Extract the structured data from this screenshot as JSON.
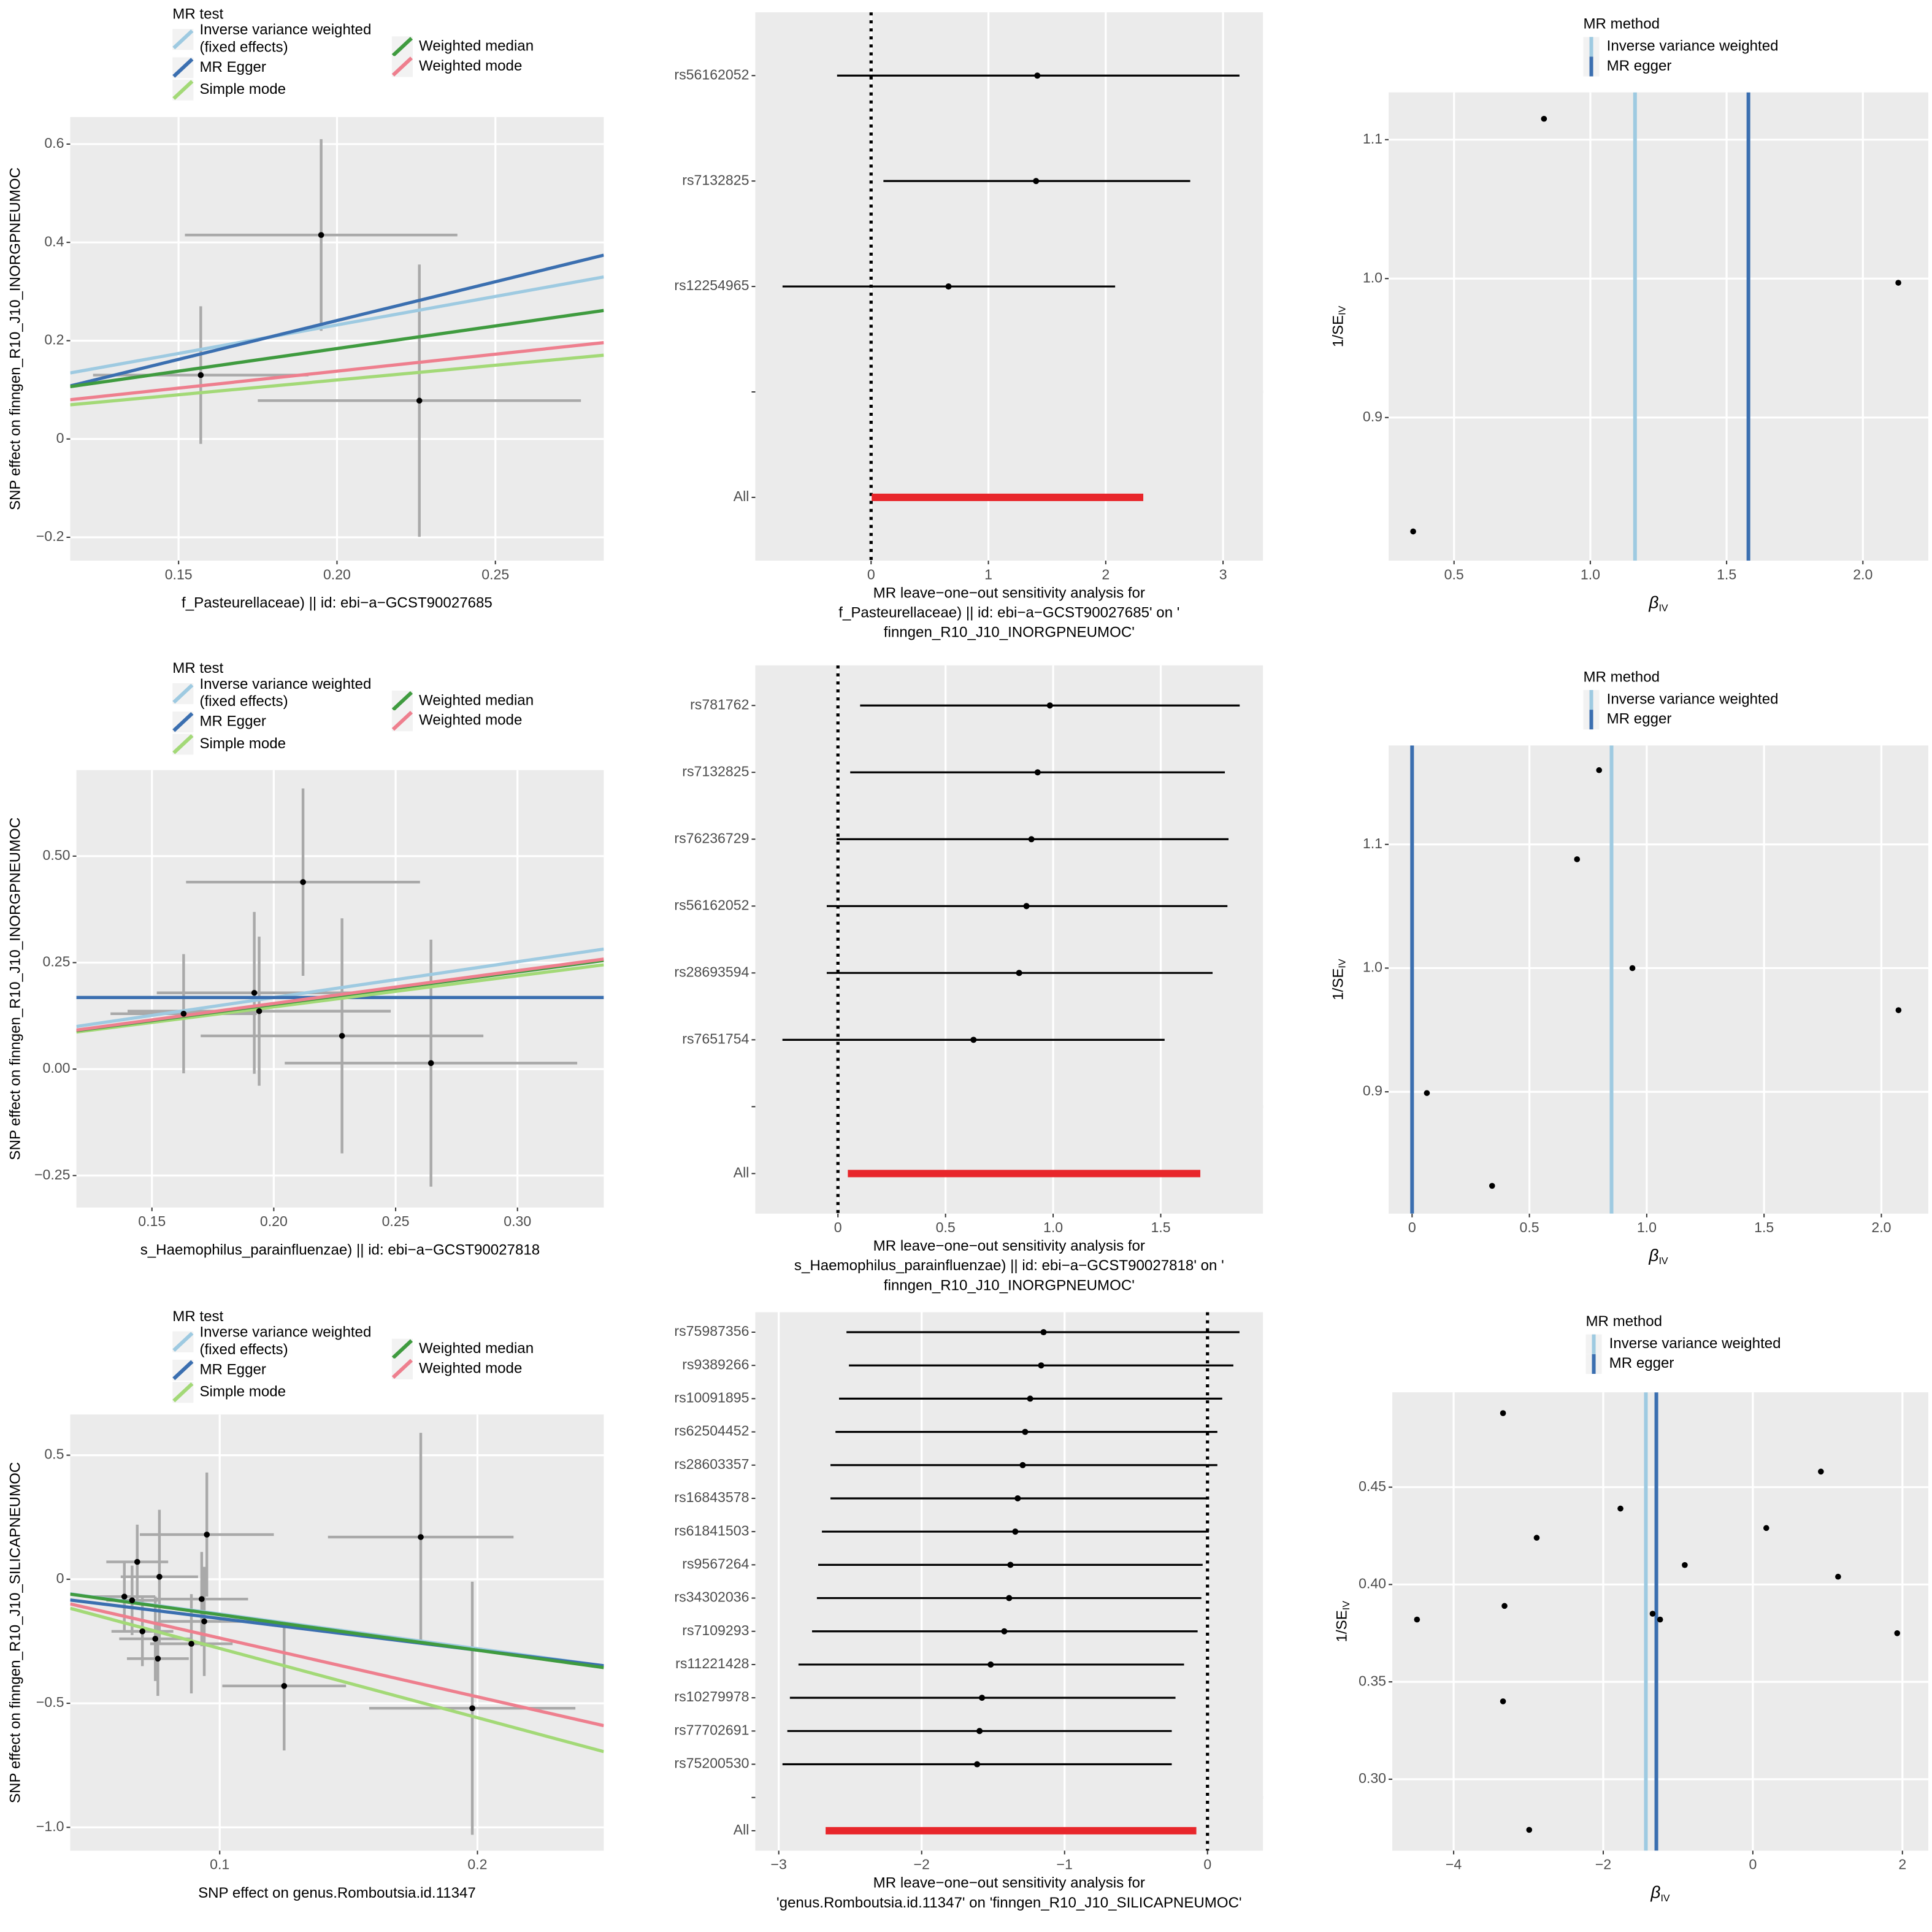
{
  "chart_data": [
    {
      "type": "scatter",
      "xlabel": "f_Pasteurellaceae) || id: ebi−a−GCST90027685",
      "ylabel": "SNP effect on finngen_R10_J10_INORGPNEUMOC",
      "legend_title": "MR test",
      "x": [
        0.195,
        0.157,
        0.226
      ],
      "y": [
        0.415,
        0.13,
        0.078
      ],
      "xerr": [
        0.043,
        0.034,
        0.051
      ],
      "yerr": [
        0.195,
        0.14,
        0.277
      ],
      "point_color": "#000000",
      "errorbar_color": "#a9a9a9",
      "lines": [
        {
          "name": "Inverse variance weighted\n(fixed effects)",
          "color": "#9ecae1",
          "slope": 1.16,
          "intercept": 0
        },
        {
          "name": "MR Egger",
          "color": "#3b6fb0",
          "slope": 1.58,
          "intercept": -0.075
        },
        {
          "name": "Simple mode",
          "color": "#a3d977",
          "slope": 0.6,
          "intercept": 0
        },
        {
          "name": "Weighted median",
          "color": "#3f9b3f",
          "slope": 0.92,
          "intercept": 0
        },
        {
          "name": "Weighted mode",
          "color": "#ee7f8e",
          "slope": 0.69,
          "intercept": 0
        }
      ],
      "xlim": [
        0.1158,
        0.2842
      ],
      "ylim": [
        -0.2475,
        0.655
      ],
      "xticks": [
        0.15,
        {
          "value": 0.2,
          "label": "0.20"
        },
        0.25
      ],
      "yticks": [
        {
          "value": -0.2,
          "label": "−0.2"
        },
        0,
        0.2,
        0.4,
        0.6
      ]
    },
    {
      "type": "forest",
      "xlabel": "MR leave−one−out sensitivity analysis for\nf_Pasteurellaceae) || id: ebi−a−GCST90027685' on '\nfinngen_R10_J10_INORGPNEUMOC'",
      "categories": [
        "rs56162052",
        "rs7132825",
        "rs12254965",
        null,
        "All"
      ],
      "values": [
        1.417,
        1.406,
        0.66,
        null,
        null
      ],
      "lower": [
        -0.29,
        0.105,
        -0.755,
        null,
        0.005
      ],
      "upper": [
        3.14,
        2.72,
        2.08,
        null,
        2.32
      ],
      "color": "#000000",
      "summary_color": "#e8262b",
      "separator_color": "#b3b3b3",
      "reference_line": 0,
      "xlim": [
        -0.987,
        3.34
      ],
      "xticks": [
        0,
        1,
        2,
        3
      ]
    },
    {
      "type": "funnel",
      "xlabel": "β",
      "xlabel_sub": "IV",
      "ylabel": "1/SE",
      "ylabel_sub": "IV",
      "legend_title": "MR method",
      "x": [
        0.35,
        0.83,
        2.13
      ],
      "y": [
        0.818,
        1.115,
        0.997
      ],
      "point_color": "#000000",
      "methods": [
        {
          "name": "Inverse variance weighted",
          "color": "#9ecae1",
          "value": 1.164
        },
        {
          "name": "MR egger",
          "color": "#3b6fb0",
          "value": 1.58
        }
      ],
      "xlim": [
        0.26,
        2.24
      ],
      "ylim": [
        0.797,
        1.134
      ],
      "xticks": [
        0.5,
        {
          "value": 1,
          "label": "1.0"
        },
        1.5,
        {
          "value": 2,
          "label": "2.0"
        }
      ],
      "yticks": [
        0.9,
        {
          "value": 1,
          "label": "1.0"
        },
        1.1
      ]
    },
    {
      "type": "scatter",
      "xlabel": "s_Haemophilus_parainfluenzae) || id: ebi−a−GCST90027818",
      "ylabel": "SNP effect on finngen_R10_J10_INORGPNEUMOC",
      "legend_title": "MR test",
      "x": [
        0.212,
        0.192,
        0.194,
        0.163,
        0.228,
        0.2645
      ],
      "y": [
        0.439,
        0.179,
        0.136,
        0.13,
        0.078,
        0.014
      ],
      "xerr": [
        0.048,
        0.04,
        0.054,
        0.03,
        0.058,
        0.06
      ],
      "yerr": [
        0.22,
        0.19,
        0.175,
        0.14,
        0.276,
        0.29
      ],
      "point_color": "#000000",
      "errorbar_color": "#a9a9a9",
      "lines": [
        {
          "name": "Inverse variance weighted\n(fixed effects)",
          "color": "#9ecae1",
          "slope": 0.84,
          "intercept": 0
        },
        {
          "name": "MR Egger",
          "color": "#3b6fb0",
          "slope": 0,
          "intercept": 0.168
        },
        {
          "name": "Simple mode",
          "color": "#a3d977",
          "slope": 0.73,
          "intercept": 0
        },
        {
          "name": "Weighted median",
          "color": "#3f9b3f",
          "slope": 0.76,
          "intercept": 0
        },
        {
          "name": "Weighted mode",
          "color": "#ee7f8e",
          "slope": 0.77,
          "intercept": 0
        }
      ],
      "xlim": [
        0.119,
        0.3354
      ],
      "ylim": [
        -0.325,
        0.702
      ],
      "xticks": [
        0.15,
        {
          "value": 0.2,
          "label": "0.20"
        },
        0.25,
        {
          "value": 0.3,
          "label": "0.30"
        }
      ],
      "yticks": [
        {
          "value": -0.25,
          "label": "−0.25"
        },
        {
          "value": 0,
          "label": "0.00"
        },
        0.25,
        {
          "value": 0.5,
          "label": "0.50"
        }
      ]
    },
    {
      "type": "forest",
      "xlabel": "MR leave−one−out sensitivity analysis for\ns_Haemophilus_parainfluenzae) || id: ebi−a−GCST90027818' on '\nfinngen_R10_J10_INORGPNEUMOC'",
      "categories": [
        "rs781762",
        "rs7132825",
        "rs76236729",
        "rs56162052",
        "rs28693594",
        "rs7651754",
        null,
        "All"
      ],
      "values": [
        0.985,
        0.928,
        0.899,
        0.876,
        0.842,
        0.63,
        null,
        null
      ],
      "lower": [
        0.103,
        0.057,
        -0.006,
        -0.052,
        -0.052,
        -0.258,
        null,
        0.046
      ],
      "upper": [
        1.867,
        1.798,
        1.815,
        1.81,
        1.741,
        1.518,
        null,
        1.684
      ],
      "color": "#000000",
      "summary_color": "#e8262b",
      "separator_color": "#b3b3b3",
      "reference_line": 0,
      "xlim": [
        -0.384,
        1.975
      ],
      "xticks": [
        0,
        0.5,
        {
          "value": 1,
          "label": "1.0"
        },
        1.5
      ]
    },
    {
      "type": "funnel",
      "xlabel": "β",
      "xlabel_sub": "IV",
      "ylabel": "1/SE",
      "ylabel_sub": "IV",
      "legend_title": "MR method",
      "x": [
        0.797,
        0.703,
        0.939,
        2.073,
        0.063,
        0.341
      ],
      "y": [
        1.16,
        1.088,
        1.0,
        0.966,
        0.899,
        0.824
      ],
      "point_color": "#000000",
      "methods": [
        {
          "name": "Inverse variance weighted",
          "color": "#9ecae1",
          "value": 0.85
        },
        {
          "name": "MR egger",
          "color": "#3b6fb0",
          "value": 0.0
        }
      ],
      "xlim": [
        -0.1,
        2.2
      ],
      "ylim": [
        0.8015,
        1.18
      ],
      "xticks": [
        0,
        0.5,
        {
          "value": 1,
          "label": "1.0"
        },
        1.5,
        {
          "value": 2,
          "label": "2.0"
        }
      ],
      "yticks": [
        0.9,
        {
          "value": 1,
          "label": "1.0"
        },
        1.1
      ]
    },
    {
      "type": "scatter",
      "xlabel": "SNP effect on genus.Romboutsia.id.11347",
      "ylabel": "SNP effect on finngen_R10_J10_SILICAPNEUMOC",
      "legend_title": "MR test",
      "x": [
        0.068,
        0.0766,
        0.095,
        0.093,
        0.094,
        0.063,
        0.07,
        0.075,
        0.076,
        0.089,
        0.125,
        0.178,
        0.198,
        0.066
      ],
      "y": [
        0.07,
        0.01,
        0.18,
        -0.08,
        -0.17,
        -0.07,
        -0.21,
        -0.24,
        -0.32,
        -0.26,
        -0.43,
        0.17,
        -0.52,
        -0.085
      ],
      "xerr": [
        0.012,
        0.015,
        0.026,
        0.018,
        0.018,
        0.012,
        0.012,
        0.014,
        0.012,
        0.016,
        0.024,
        0.036,
        0.04,
        0.01
      ],
      "yerr": [
        0.15,
        0.27,
        0.25,
        0.19,
        0.22,
        0.14,
        0.14,
        0.17,
        0.15,
        0.2,
        0.26,
        0.42,
        0.51,
        0.14
      ],
      "point_color": "#000000",
      "errorbar_color": "#a9a9a9",
      "lines": [
        {
          "name": "Inverse variance weighted\n(fixed effects)",
          "color": "#9ecae1",
          "slope": -1.4,
          "intercept": 0
        },
        {
          "name": "MR Egger",
          "color": "#3b6fb0",
          "slope": -1.28,
          "intercept": -0.03
        },
        {
          "name": "Simple mode",
          "color": "#a3d977",
          "slope": -2.79,
          "intercept": 0
        },
        {
          "name": "Weighted median",
          "color": "#3f9b3f",
          "slope": -1.43,
          "intercept": 0
        },
        {
          "name": "Weighted mode",
          "color": "#ee7f8e",
          "slope": -2.37,
          "intercept": 0
        }
      ],
      "xlim": [
        0.042,
        0.249
      ],
      "ylim": [
        -1.094,
        0.664
      ],
      "xticks": [
        0.1,
        0.2
      ],
      "yticks": [
        {
          "value": -1,
          "label": "−1.0"
        },
        {
          "value": -0.5,
          "label": "−0.5"
        },
        0,
        0.5
      ]
    },
    {
      "type": "forest",
      "xlabel": "MR leave−one−out sensitivity analysis for\n'genus.Romboutsia.id.11347' on 'finngen_R10_J10_SILICAPNEUMOC'",
      "categories": [
        "rs75987356",
        "rs9389266",
        "rs10091895",
        "rs62504452",
        "rs28603357",
        "rs16843578",
        "rs61841503",
        "rs9567264",
        "rs34302036",
        "rs7109293",
        "rs11221428",
        "rs10279978",
        "rs77702691",
        "rs75200530",
        null,
        "All"
      ],
      "values": [
        -1.147,
        -1.164,
        -1.241,
        -1.276,
        -1.293,
        -1.328,
        -1.345,
        -1.379,
        -1.388,
        -1.422,
        -1.517,
        -1.578,
        -1.595,
        -1.612,
        null,
        null
      ],
      "lower": [
        -2.526,
        -2.509,
        -2.578,
        -2.603,
        -2.638,
        -2.638,
        -2.698,
        -2.724,
        -2.733,
        -2.767,
        -2.862,
        -2.922,
        -2.94,
        -2.974,
        null,
        -2.672
      ],
      "upper": [
        0.224,
        0.181,
        0.103,
        0.069,
        0.069,
        0.009,
        0.009,
        -0.034,
        -0.043,
        -0.069,
        -0.164,
        -0.224,
        -0.25,
        -0.25,
        null,
        -0.078
      ],
      "color": "#000000",
      "summary_color": "#e8262b",
      "separator_color": "#b3b3b3",
      "reference_line": 0,
      "xlim": [
        -3.164,
        0.388
      ],
      "xticks": [
        {
          "value": -3,
          "label": "−3"
        },
        {
          "value": -2,
          "label": "−2"
        },
        {
          "value": -1,
          "label": "−1"
        },
        0
      ]
    },
    {
      "type": "funnel",
      "xlabel": "β",
      "xlabel_sub": "IV",
      "ylabel": "1/SE",
      "ylabel_sub": "IV",
      "legend_title": "MR method",
      "x": [
        -3.34,
        0.91,
        -1.77,
        -2.89,
        0.18,
        -0.91,
        1.14,
        -3.32,
        -4.49,
        -1.34,
        -1.24,
        1.93,
        -3.34,
        -2.99
      ],
      "y": [
        0.488,
        0.458,
        0.439,
        0.424,
        0.429,
        0.41,
        0.404,
        0.389,
        0.382,
        0.385,
        0.382,
        0.375,
        0.34,
        0.274
      ],
      "point_color": "#000000",
      "methods": [
        {
          "name": "Inverse variance weighted",
          "color": "#9ecae1",
          "value": -1.43
        },
        {
          "name": "MR egger",
          "color": "#3b6fb0",
          "value": -1.29
        }
      ],
      "xlim": [
        -4.82,
        2.346
      ],
      "ylim": [
        0.2633,
        0.4987
      ],
      "xticks": [
        {
          "value": -4,
          "label": "−4"
        },
        {
          "value": -2,
          "label": "−2"
        },
        0,
        2
      ],
      "yticks": [
        {
          "value": 0.3,
          "label": "0.30"
        },
        0.35,
        {
          "value": 0.4,
          "label": "0.40"
        },
        0.45
      ]
    }
  ]
}
